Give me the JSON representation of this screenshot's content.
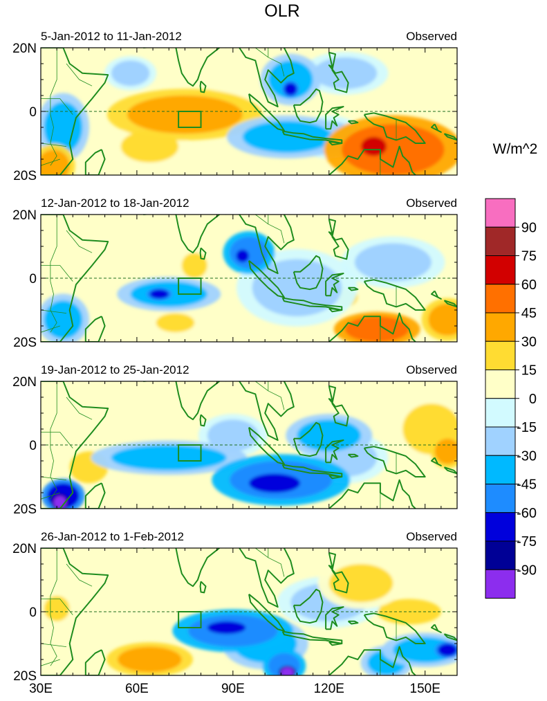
{
  "chart_data": {
    "type": "heatmap",
    "title": "OLR",
    "units": "W/m^2",
    "x_ticks": [
      "30E",
      "60E",
      "90E",
      "120E",
      "150E"
    ],
    "x_tick_values": [
      30,
      60,
      90,
      120,
      150
    ],
    "y_ticks": [
      "20N",
      "0",
      "20S"
    ],
    "y_tick_values": [
      20,
      0,
      -20
    ],
    "xlim": [
      30,
      160
    ],
    "ylim": [
      -20,
      20
    ],
    "box": {
      "lon": [
        73,
        80
      ],
      "lat": [
        -5,
        0
      ]
    },
    "colorbar": {
      "labels": [
        "90",
        "75",
        "60",
        "45",
        "30",
        "15",
        "0",
        "-15",
        "-30",
        "-45",
        "-60",
        "-75",
        "-90"
      ],
      "colors": [
        "#f86ec0",
        "#a02828",
        "#d20000",
        "#ff7000",
        "#ffa800",
        "#ffdc32",
        "#ffffc8",
        "#d2faff",
        "#a0d2ff",
        "#00b9ff",
        "#1e8cff",
        "#0000dc",
        "#000096",
        "#8c2dee"
      ]
    },
    "panels": [
      {
        "date_range": "5-Jan-2012 to 11-Jan-2012",
        "label": "Observed",
        "anomalies": [
          {
            "lon": 75,
            "lat": -1,
            "value": 35,
            "rx": 18,
            "ry": 6
          },
          {
            "lon": 85,
            "lat": 0,
            "value": 25,
            "rx": 12,
            "ry": 5
          },
          {
            "lon": 64,
            "lat": -11,
            "value": 25,
            "rx": 9,
            "ry": 5
          },
          {
            "lon": 140,
            "lat": -12,
            "value": 55,
            "rx": 16,
            "ry": 8
          },
          {
            "lon": 134,
            "lat": -11,
            "value": 70,
            "rx": 4,
            "ry": 3
          },
          {
            "lon": 34,
            "lat": -17,
            "value": 40,
            "rx": 5,
            "ry": 5
          },
          {
            "lon": 107,
            "lat": -8,
            "value": -45,
            "rx": 14,
            "ry": 5
          },
          {
            "lon": 120,
            "lat": -8,
            "value": -30,
            "rx": 8,
            "ry": 5
          },
          {
            "lon": 108,
            "lat": 10,
            "value": -40,
            "rx": 7,
            "ry": 6
          },
          {
            "lon": 108,
            "lat": 7,
            "value": -70,
            "rx": 2,
            "ry": 2
          },
          {
            "lon": 37,
            "lat": -5,
            "value": -35,
            "rx": 6,
            "ry": 8
          },
          {
            "lon": 58,
            "lat": 12,
            "value": -20,
            "rx": 6,
            "ry": 4
          },
          {
            "lon": 125,
            "lat": 12,
            "value": -20,
            "rx": 10,
            "ry": 5
          }
        ]
      },
      {
        "date_range": "12-Jan-2012 to 18-Jan-2012",
        "label": "Observed",
        "anomalies": [
          {
            "lon": 70,
            "lat": -5,
            "value": -45,
            "rx": 12,
            "ry": 4
          },
          {
            "lon": 67,
            "lat": -5,
            "value": -65,
            "rx": 3,
            "ry": 1.5
          },
          {
            "lon": 95,
            "lat": 8,
            "value": -50,
            "rx": 6,
            "ry": 5
          },
          {
            "lon": 93,
            "lat": 7,
            "value": -70,
            "rx": 2,
            "ry": 2
          },
          {
            "lon": 110,
            "lat": -3,
            "value": -25,
            "rx": 14,
            "ry": 9
          },
          {
            "lon": 140,
            "lat": 5,
            "value": -20,
            "rx": 12,
            "ry": 6
          },
          {
            "lon": 37,
            "lat": -13,
            "value": -35,
            "rx": 6,
            "ry": 6
          },
          {
            "lon": 135,
            "lat": -16,
            "value": 45,
            "rx": 10,
            "ry": 4
          },
          {
            "lon": 157,
            "lat": -13,
            "value": 35,
            "rx": 6,
            "ry": 5
          },
          {
            "lon": 78,
            "lat": 4,
            "value": 20,
            "rx": 4,
            "ry": 4
          },
          {
            "lon": 72,
            "lat": -14,
            "value": 20,
            "rx": 6,
            "ry": 3
          },
          {
            "lon": 125,
            "lat": -6,
            "value": 20,
            "rx": 4,
            "ry": 3
          }
        ]
      },
      {
        "date_range": "19-Jan-2012 to 25-Jan-2012",
        "label": "Observed",
        "anomalies": [
          {
            "lon": 105,
            "lat": -11,
            "value": -55,
            "rx": 16,
            "ry": 6
          },
          {
            "lon": 103,
            "lat": -12,
            "value": -75,
            "rx": 8,
            "ry": 3
          },
          {
            "lon": 70,
            "lat": -4,
            "value": -35,
            "rx": 18,
            "ry": 4
          },
          {
            "lon": 120,
            "lat": 3,
            "value": -40,
            "rx": 10,
            "ry": 5
          },
          {
            "lon": 125,
            "lat": -4,
            "value": -25,
            "rx": 10,
            "ry": 6
          },
          {
            "lon": 37,
            "lat": -16,
            "value": -65,
            "rx": 5,
            "ry": 4
          },
          {
            "lon": 36,
            "lat": -18,
            "value": -95,
            "rx": 2,
            "ry": 2
          },
          {
            "lon": 90,
            "lat": 3,
            "value": -20,
            "rx": 8,
            "ry": 5
          },
          {
            "lon": 152,
            "lat": 5,
            "value": 25,
            "rx": 9,
            "ry": 8
          },
          {
            "lon": 157,
            "lat": -2,
            "value": 40,
            "rx": 4,
            "ry": 4
          },
          {
            "lon": 45,
            "lat": -7,
            "value": 15,
            "rx": 6,
            "ry": 5
          }
        ]
      },
      {
        "date_range": "26-Jan-2012 to 1-Feb-2012",
        "label": "Observed",
        "anomalies": [
          {
            "lon": 90,
            "lat": -6,
            "value": -55,
            "rx": 14,
            "ry": 5
          },
          {
            "lon": 88,
            "lat": -5,
            "value": -70,
            "rx": 6,
            "ry": 2
          },
          {
            "lon": 106,
            "lat": -17,
            "value": -60,
            "rx": 5,
            "ry": 4
          },
          {
            "lon": 107,
            "lat": -19,
            "value": -95,
            "rx": 2,
            "ry": 1.5
          },
          {
            "lon": 100,
            "lat": -10,
            "value": -40,
            "rx": 10,
            "ry": 6
          },
          {
            "lon": 150,
            "lat": -12,
            "value": -45,
            "rx": 10,
            "ry": 4
          },
          {
            "lon": 157,
            "lat": -12,
            "value": -65,
            "rx": 3,
            "ry": 2
          },
          {
            "lon": 138,
            "lat": -16,
            "value": -35,
            "rx": 6,
            "ry": 4
          },
          {
            "lon": 120,
            "lat": 3,
            "value": -20,
            "rx": 12,
            "ry": 6
          },
          {
            "lon": 64,
            "lat": -15,
            "value": 40,
            "rx": 10,
            "ry": 4
          },
          {
            "lon": 130,
            "lat": 9,
            "value": 25,
            "rx": 10,
            "ry": 6
          },
          {
            "lon": 35,
            "lat": 1,
            "value": 25,
            "rx": 4,
            "ry": 4
          },
          {
            "lon": 145,
            "lat": 0,
            "value": 15,
            "rx": 10,
            "ry": 4
          },
          {
            "lon": 70,
            "lat": 7,
            "value": 10,
            "rx": 8,
            "ry": 5
          }
        ]
      }
    ]
  }
}
